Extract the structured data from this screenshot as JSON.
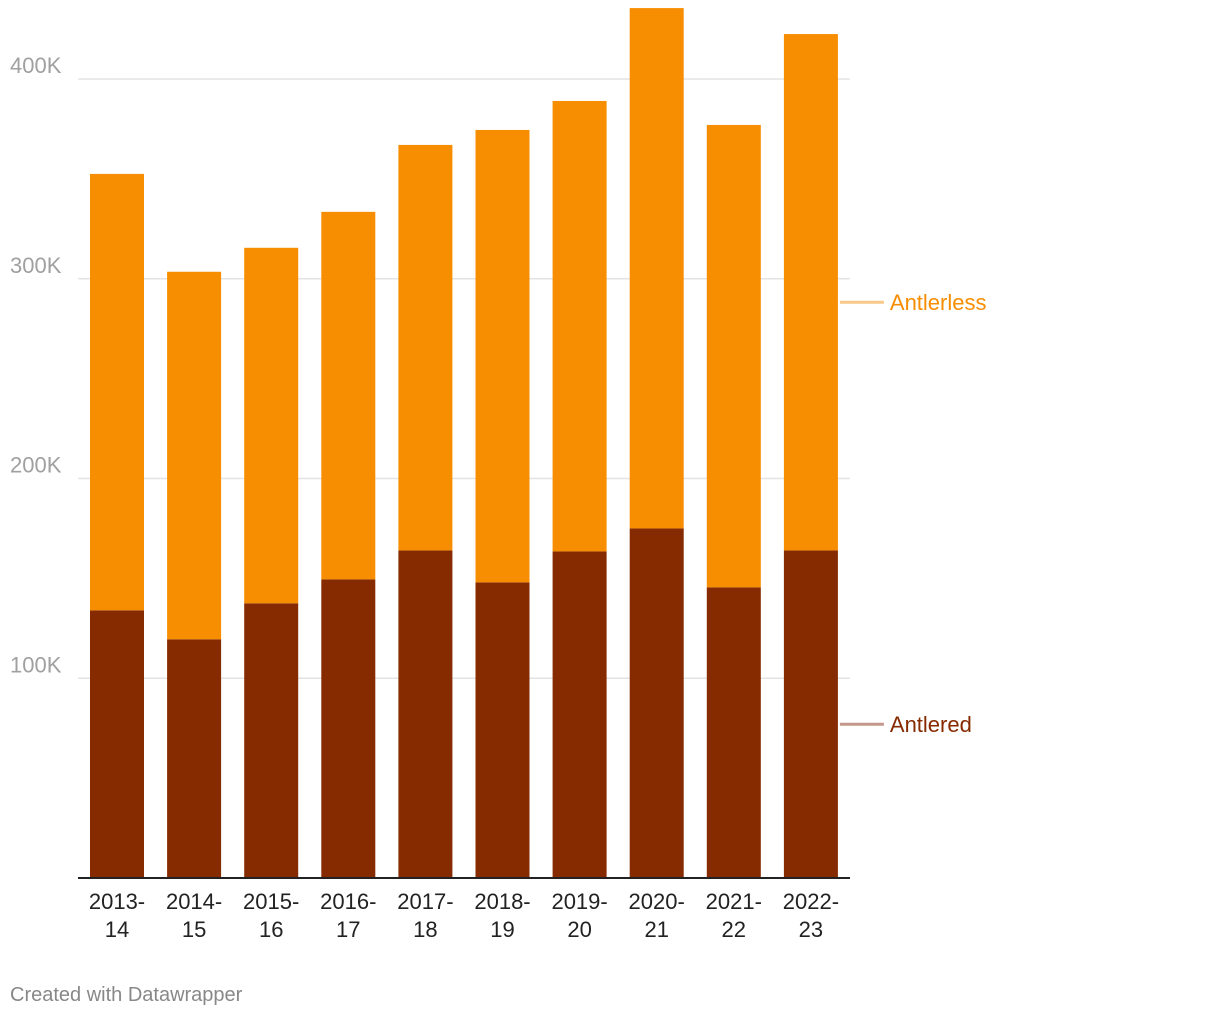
{
  "chart_data": {
    "type": "bar",
    "stacked": true,
    "categories": [
      [
        "2013-",
        "14"
      ],
      [
        "2014-",
        "15"
      ],
      [
        "2015-",
        "16"
      ],
      [
        "2016-",
        "17"
      ],
      [
        "2017-",
        "18"
      ],
      [
        "2018-",
        "19"
      ],
      [
        "2019-",
        "20"
      ],
      [
        "2020-",
        "21"
      ],
      [
        "2021-",
        "22"
      ],
      [
        "2022-",
        "23"
      ]
    ],
    "series": [
      {
        "name": "Antlered",
        "color": "#862a00",
        "legend_line_color": "#c4978a",
        "values": [
          134000,
          119500,
          137500,
          149500,
          164000,
          148000,
          163500,
          175000,
          145500,
          164000
        ]
      },
      {
        "name": "Antlerless",
        "color": "#f78d00",
        "legend_line_color": "#f9c98a",
        "values": [
          218500,
          184000,
          178000,
          184000,
          203000,
          226500,
          225500,
          260500,
          231500,
          258500
        ]
      }
    ],
    "yticks": [
      100000,
      200000,
      300000,
      400000
    ],
    "ytick_labels": [
      "100K",
      "200K",
      "300K",
      "400K"
    ],
    "ylim": [
      0,
      440000
    ],
    "grid": true,
    "legend_placement": "right, inline labels"
  },
  "footer": {
    "credit": "Created with Datawrapper"
  }
}
